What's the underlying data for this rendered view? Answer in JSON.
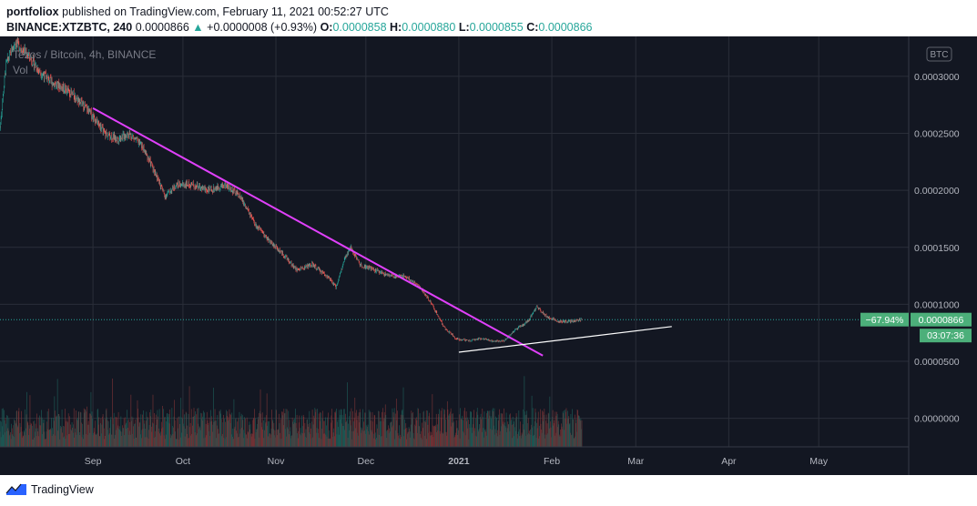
{
  "header": {
    "author": "portfoliox",
    "published_text": "published on TradingView.com, February 11, 2021 00:52:27 UTC",
    "symbol": "BINANCE:XTZBTC, 240",
    "last": "0.0000866",
    "change_arrow": "▲",
    "change": "+0.0000008 (+0.93%)",
    "o_label": "O:",
    "o_value": "0.0000858",
    "h_label": "H:",
    "h_value": "0.0000880",
    "l_label": "L:",
    "l_value": "0.0000855",
    "c_label": "C:",
    "c_value": "0.0000866"
  },
  "legend": {
    "title": "Tezos / Bitcoin, 4h, BINANCE",
    "vol": "Vol"
  },
  "currency_badge": "BTC",
  "price_badge": {
    "pct": "−67.94%",
    "price": "0.0000866",
    "countdown": "03:07:36"
  },
  "footer": {
    "brand": "TradingView"
  },
  "colors": {
    "background": "#131722",
    "grid": "#2a2e39",
    "up": "#26a69a",
    "down": "#ef5350",
    "trend_down": "#e040fb",
    "trend_up": "#ffffff",
    "badge_bg": "#4caf7a"
  },
  "chart_data": {
    "type": "candlestick",
    "title": "Tezos / Bitcoin, 4h, BINANCE",
    "x_tick_labels": [
      "Sep",
      "Oct",
      "Nov",
      "Dec",
      "2021",
      "Feb",
      "Mar",
      "Apr",
      "May"
    ],
    "y_tick_labels": [
      "0.0003000",
      "0.0002500",
      "0.0002000",
      "0.0001500",
      "0.0001000",
      "0.0000500",
      "0.0000000"
    ],
    "y_ticks": [
      0.0003,
      0.00025,
      0.0002,
      0.00015,
      0.0001,
      5e-05,
      0.0
    ],
    "ylim": [
      -2.5e-05,
      0.000335
    ],
    "x_range": [
      "2020-08-01",
      "2021-05-31"
    ],
    "price_path": [
      [
        "2020-08-01",
        0.000255
      ],
      [
        "2020-08-03",
        0.00031
      ],
      [
        "2020-08-06",
        0.00033
      ],
      [
        "2020-08-10",
        0.00032
      ],
      [
        "2020-08-14",
        0.000305
      ],
      [
        "2020-08-18",
        0.000295
      ],
      [
        "2020-08-22",
        0.00029
      ],
      [
        "2020-08-27",
        0.00028
      ],
      [
        "2020-09-01",
        0.000265
      ],
      [
        "2020-09-05",
        0.00025
      ],
      [
        "2020-09-09",
        0.000245
      ],
      [
        "2020-09-13",
        0.00025
      ],
      [
        "2020-09-17",
        0.00024
      ],
      [
        "2020-09-21",
        0.00022
      ],
      [
        "2020-09-25",
        0.000195
      ],
      [
        "2020-09-29",
        0.000205
      ],
      [
        "2020-10-04",
        0.000205
      ],
      [
        "2020-10-10",
        0.0002
      ],
      [
        "2020-10-15",
        0.000205
      ],
      [
        "2020-10-20",
        0.000195
      ],
      [
        "2020-10-25",
        0.00017
      ],
      [
        "2020-10-30",
        0.000155
      ],
      [
        "2020-11-03",
        0.000145
      ],
      [
        "2020-11-08",
        0.00013
      ],
      [
        "2020-11-13",
        0.000135
      ],
      [
        "2020-11-18",
        0.000125
      ],
      [
        "2020-11-21",
        0.000115
      ],
      [
        "2020-11-24",
        0.00014
      ],
      [
        "2020-11-26",
        0.00015
      ],
      [
        "2020-11-29",
        0.000135
      ],
      [
        "2020-12-04",
        0.00013
      ],
      [
        "2020-12-09",
        0.000125
      ],
      [
        "2020-12-14",
        0.000125
      ],
      [
        "2020-12-19",
        0.000115
      ],
      [
        "2020-12-23",
        0.0001
      ],
      [
        "2020-12-27",
        8e-05
      ],
      [
        "2020-12-31",
        7e-05
      ],
      [
        "2021-01-04",
        6.8e-05
      ],
      [
        "2021-01-08",
        7e-05
      ],
      [
        "2021-01-12",
        6.8e-05
      ],
      [
        "2021-01-16",
        6.8e-05
      ],
      [
        "2021-01-20",
        7.8e-05
      ],
      [
        "2021-01-24",
        8.5e-05
      ],
      [
        "2021-01-27",
        9.8e-05
      ],
      [
        "2021-01-30",
        9e-05
      ],
      [
        "2021-02-03",
        8.5e-05
      ],
      [
        "2021-02-07",
        8.5e-05
      ],
      [
        "2021-02-11",
        8.66e-05
      ]
    ],
    "last_price": 8.66e-05,
    "trendlines": [
      {
        "name": "downtrend",
        "color": "#e040fb",
        "from": [
          "2020-09-01",
          0.000272
        ],
        "to": [
          "2021-01-29",
          5.5e-05
        ]
      },
      {
        "name": "uptrend",
        "color": "#ffffff",
        "from": [
          "2021-01-01",
          5.8e-05
        ],
        "to": [
          "2021-03-13",
          8.05e-05
        ]
      }
    ]
  }
}
